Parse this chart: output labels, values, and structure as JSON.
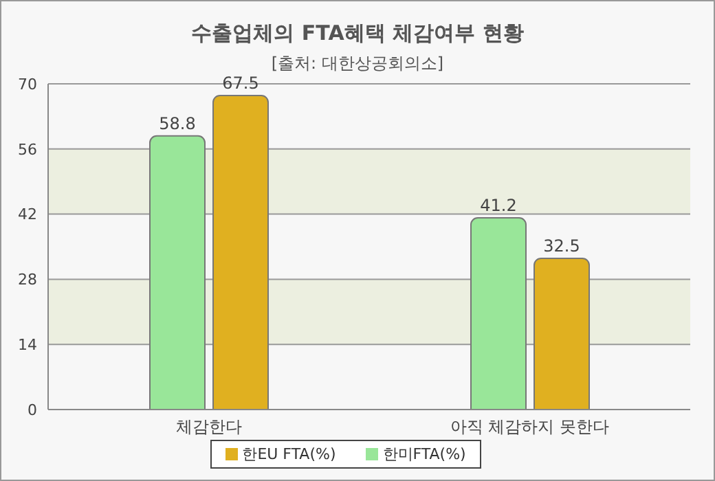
{
  "chart_data": {
    "type": "bar",
    "title": "수출업체의 FTA혜택 체감여부 현황",
    "subtitle": "[출처: 대한상공회의소]",
    "categories": [
      "체감한다",
      "아직 체감하지 못한다"
    ],
    "series": [
      {
        "name": "한미FTA(%)",
        "color": "#99e699",
        "values": [
          58.8,
          41.2
        ]
      },
      {
        "name": "한EU FTA(%)",
        "color": "#e0b020",
        "values": [
          67.5,
          32.5
        ]
      }
    ],
    "ylim": [
      0,
      70
    ],
    "yticks": [
      0,
      14,
      28,
      42,
      56,
      70
    ],
    "grid": "y",
    "legend": "bottom",
    "data_labels": true
  }
}
